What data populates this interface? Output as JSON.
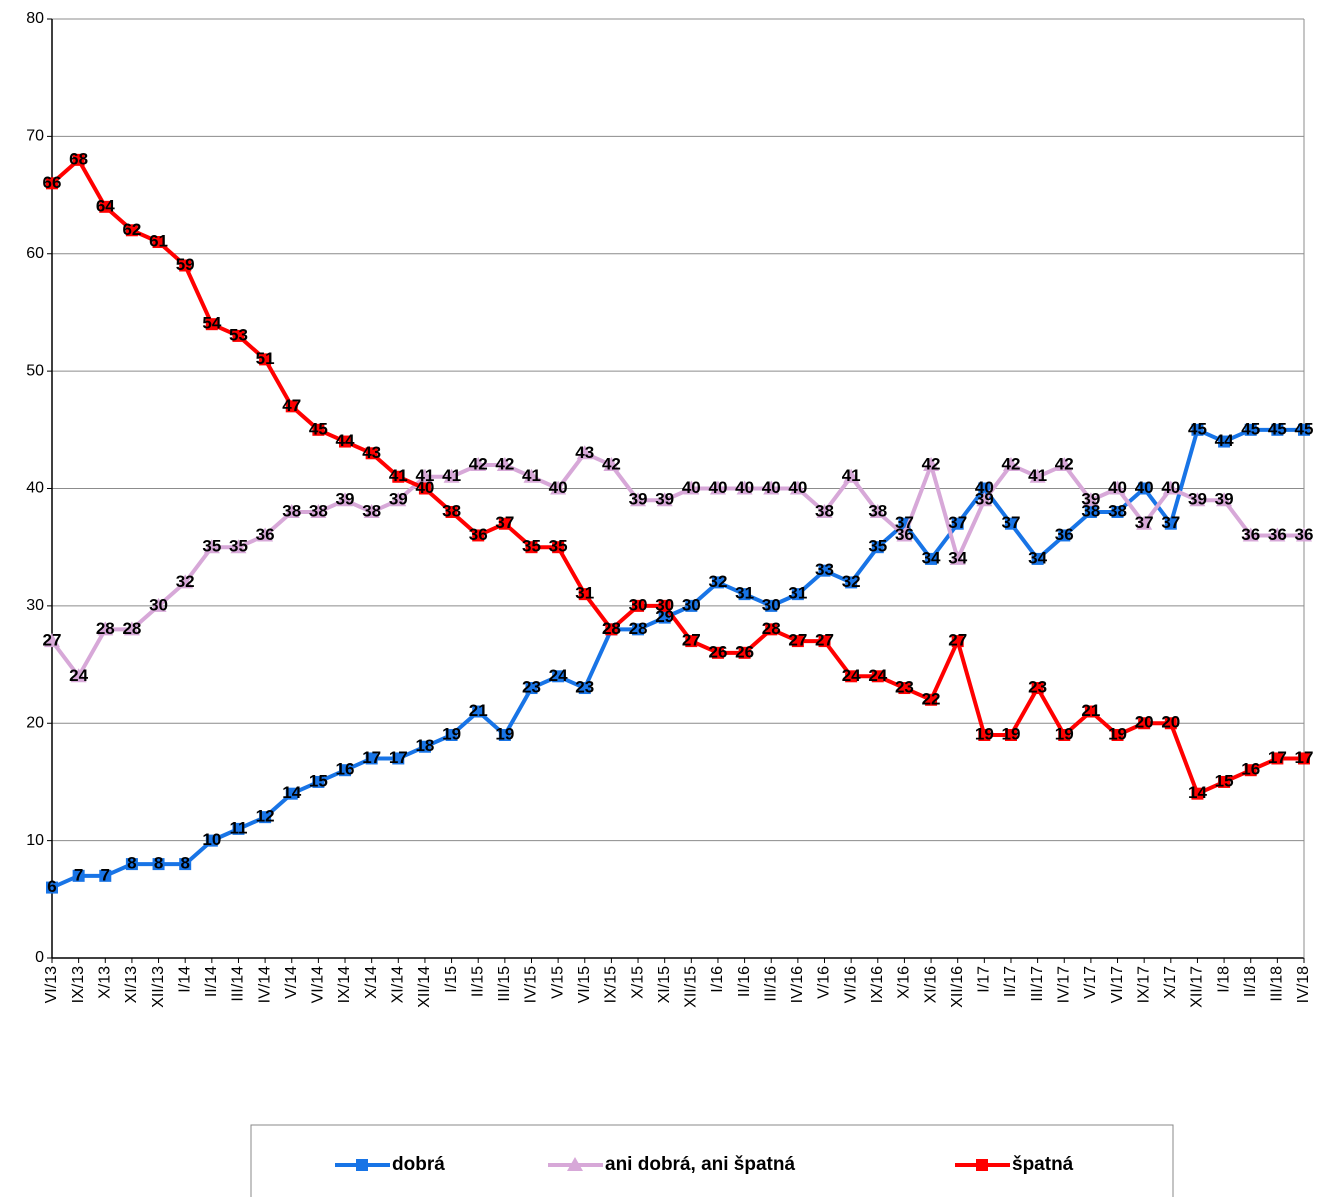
{
  "chart_data": {
    "type": "line",
    "categories": [
      "VI/13",
      "IX/13",
      "X/13",
      "XI/13",
      "XII/13",
      "I/14",
      "II/14",
      "III/14",
      "IV/14",
      "V/14",
      "VI/14",
      "IX/14",
      "X/14",
      "XI/14",
      "XII/14",
      "I/15",
      "II/15",
      "III/15",
      "IV/15",
      "V/15",
      "VI/15",
      "IX/15",
      "X/15",
      "XI/15",
      "XII/15",
      "I/16",
      "II/16",
      "III/16",
      "IV/16",
      "V/16",
      "VI/16",
      "IX/16",
      "X/16",
      "XI/16",
      "XII/16",
      "I/17",
      "II/17",
      "III/17",
      "IV/17",
      "V/17",
      "VI/17",
      "IX/17",
      "X/17",
      "XII/17",
      "I/18",
      "II/18",
      "III/18",
      "IV/18"
    ],
    "series": [
      {
        "name": "dobrá",
        "color": "#1874e6",
        "marker": "square",
        "values": [
          6,
          7,
          7,
          8,
          8,
          8,
          10,
          11,
          12,
          14,
          15,
          16,
          17,
          17,
          18,
          19,
          21,
          19,
          23,
          24,
          23,
          28,
          28,
          29,
          30,
          32,
          31,
          30,
          31,
          33,
          32,
          35,
          37,
          34,
          37,
          40,
          37,
          34,
          36,
          38,
          38,
          40,
          37,
          45,
          44,
          45,
          45,
          45
        ]
      },
      {
        "name": "ani dobrá, ani špatná",
        "color": "#d7a8d8",
        "marker": "triangle",
        "values": [
          27,
          24,
          28,
          28,
          30,
          32,
          35,
          35,
          36,
          38,
          38,
          39,
          38,
          39,
          41,
          41,
          42,
          42,
          41,
          40,
          43,
          42,
          39,
          39,
          40,
          40,
          40,
          40,
          40,
          38,
          41,
          38,
          36,
          42,
          34,
          39,
          42,
          41,
          42,
          39,
          40,
          37,
          40,
          39,
          39,
          36,
          36,
          36
        ]
      },
      {
        "name": "špatná",
        "color": "#ff0000",
        "marker": "square",
        "values": [
          66,
          68,
          64,
          62,
          61,
          59,
          54,
          53,
          51,
          47,
          45,
          44,
          43,
          41,
          40,
          38,
          36,
          37,
          35,
          35,
          31,
          28,
          30,
          30,
          27,
          26,
          26,
          28,
          27,
          27,
          24,
          24,
          23,
          22,
          27,
          19,
          19,
          23,
          19,
          21,
          19,
          20,
          20,
          14,
          15,
          16,
          17,
          17
        ]
      }
    ],
    "ylim": [
      0,
      80
    ],
    "yticks": [
      0,
      10,
      20,
      30,
      40,
      50,
      60,
      70,
      80
    ],
    "grid": true,
    "legend": "bottom"
  }
}
